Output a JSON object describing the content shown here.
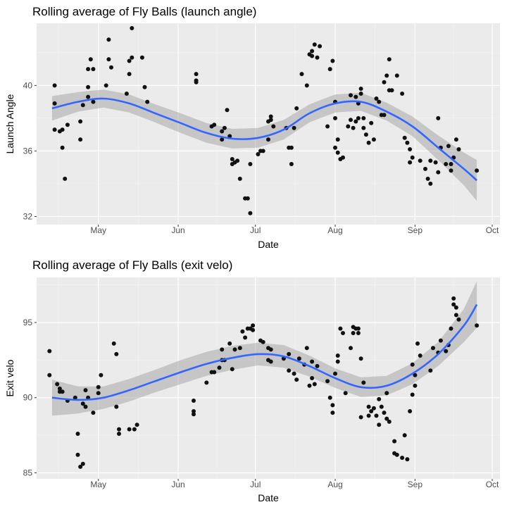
{
  "colors": {
    "panel": "#ebebeb",
    "grid_major": "#ffffff",
    "grid_minor": "#f5f5f5",
    "point": "#111111",
    "smooth": "#3366ff",
    "ribbon": "#999999"
  },
  "chart_data": [
    {
      "type": "scatter",
      "title": "Rolling average of Fly Balls (launch angle)",
      "xlabel": "Date",
      "ylabel": "Launch Angle",
      "x_axis": "date",
      "xlim": [
        "2023-04-07",
        "2023-10-04"
      ],
      "ylim": [
        31.5,
        43.8
      ],
      "x_ticks": [
        {
          "date": "2023-05-01",
          "label": "May"
        },
        {
          "date": "2023-06-01",
          "label": "Jun"
        },
        {
          "date": "2023-07-01",
          "label": "Jul"
        },
        {
          "date": "2023-08-01",
          "label": "Aug"
        },
        {
          "date": "2023-09-01",
          "label": "Sep"
        },
        {
          "date": "2023-10-01",
          "label": "Oct"
        }
      ],
      "y_ticks": [
        32,
        36,
        40
      ],
      "grid": true,
      "points": [
        [
          "2023-04-14",
          40.0
        ],
        [
          "2023-04-14",
          38.9
        ],
        [
          "2023-04-14",
          37.3
        ],
        [
          "2023-04-16",
          37.2
        ],
        [
          "2023-04-17",
          37.3
        ],
        [
          "2023-04-17",
          36.2
        ],
        [
          "2023-04-18",
          34.3
        ],
        [
          "2023-04-19",
          37.6
        ],
        [
          "2023-04-24",
          37.8
        ],
        [
          "2023-04-24",
          36.7
        ],
        [
          "2023-04-25",
          38.8
        ],
        [
          "2023-04-27",
          39.3
        ],
        [
          "2023-04-27",
          39.9
        ],
        [
          "2023-04-27",
          41.0
        ],
        [
          "2023-04-28",
          41.6
        ],
        [
          "2023-04-29",
          41.0
        ],
        [
          "2023-04-29",
          39.0
        ],
        [
          "2023-05-04",
          40.0
        ],
        [
          "2023-05-05",
          42.8
        ],
        [
          "2023-05-05",
          41.6
        ],
        [
          "2023-05-06",
          41.1
        ],
        [
          "2023-05-12",
          39.5
        ],
        [
          "2023-05-13",
          40.7
        ],
        [
          "2023-05-13",
          41.5
        ],
        [
          "2023-05-14",
          43.5
        ],
        [
          "2023-05-14",
          41.7
        ],
        [
          "2023-05-18",
          41.7
        ],
        [
          "2023-05-19",
          39.9
        ],
        [
          "2023-05-20",
          39.0
        ],
        [
          "2023-06-08",
          40.7
        ],
        [
          "2023-06-08",
          40.3
        ],
        [
          "2023-06-08",
          40.2
        ],
        [
          "2023-06-14",
          37.5
        ],
        [
          "2023-06-15",
          37.6
        ],
        [
          "2023-06-18",
          37.2
        ],
        [
          "2023-06-18",
          36.7
        ],
        [
          "2023-06-19",
          37.4
        ],
        [
          "2023-06-20",
          38.5
        ],
        [
          "2023-06-21",
          36.9
        ],
        [
          "2023-06-22",
          35.5
        ],
        [
          "2023-06-22",
          35.2
        ],
        [
          "2023-06-23",
          35.3
        ],
        [
          "2023-06-24",
          35.4
        ],
        [
          "2023-06-25",
          34.3
        ],
        [
          "2023-06-27",
          33.1
        ],
        [
          "2023-06-28",
          33.1
        ],
        [
          "2023-06-29",
          32.2
        ],
        [
          "2023-06-29",
          35.2
        ],
        [
          "2023-07-02",
          35.8
        ],
        [
          "2023-07-03",
          36.0
        ],
        [
          "2023-07-04",
          36.0
        ],
        [
          "2023-07-06",
          37.8
        ],
        [
          "2023-07-06",
          36.7
        ],
        [
          "2023-07-07",
          37.9
        ],
        [
          "2023-07-07",
          38.1
        ],
        [
          "2023-07-08",
          37.5
        ],
        [
          "2023-07-13",
          37.4
        ],
        [
          "2023-07-14",
          36.2
        ],
        [
          "2023-07-15",
          36.2
        ],
        [
          "2023-07-15",
          35.2
        ],
        [
          "2023-07-16",
          37.4
        ],
        [
          "2023-07-17",
          38.6
        ],
        [
          "2023-07-19",
          40.7
        ],
        [
          "2023-07-21",
          40.0
        ],
        [
          "2023-07-22",
          41.9
        ],
        [
          "2023-07-23",
          42.1
        ],
        [
          "2023-07-23",
          41.8
        ],
        [
          "2023-07-24",
          42.5
        ],
        [
          "2023-07-25",
          41.7
        ],
        [
          "2023-07-26",
          42.4
        ],
        [
          "2023-07-29",
          37.5
        ],
        [
          "2023-07-30",
          41.0
        ],
        [
          "2023-07-31",
          41.5
        ],
        [
          "2023-08-01",
          39.0
        ],
        [
          "2023-08-01",
          38.0
        ],
        [
          "2023-08-01",
          36.2
        ],
        [
          "2023-08-02",
          36.7
        ],
        [
          "2023-08-02",
          35.9
        ],
        [
          "2023-08-03",
          35.5
        ],
        [
          "2023-08-04",
          35.6
        ],
        [
          "2023-08-06",
          37.5
        ],
        [
          "2023-08-07",
          39.4
        ],
        [
          "2023-08-07",
          37.9
        ],
        [
          "2023-08-08",
          37.4
        ],
        [
          "2023-08-09",
          39.3
        ],
        [
          "2023-08-09",
          37.8
        ],
        [
          "2023-08-10",
          38.9
        ],
        [
          "2023-08-10",
          38.0
        ],
        [
          "2023-08-11",
          39.5
        ],
        [
          "2023-08-11",
          39.8
        ],
        [
          "2023-08-12",
          38.0
        ],
        [
          "2023-08-12",
          37.4
        ],
        [
          "2023-08-13",
          37.0
        ],
        [
          "2023-08-14",
          36.5
        ],
        [
          "2023-08-15",
          37.7
        ],
        [
          "2023-08-16",
          36.7
        ],
        [
          "2023-08-17",
          39.2
        ],
        [
          "2023-08-18",
          39.0
        ],
        [
          "2023-08-19",
          38.2
        ],
        [
          "2023-08-20",
          40.2
        ],
        [
          "2023-08-20",
          38.2
        ],
        [
          "2023-08-21",
          40.6
        ],
        [
          "2023-08-22",
          41.6
        ],
        [
          "2023-08-22",
          39.7
        ],
        [
          "2023-08-23",
          39.7
        ],
        [
          "2023-08-25",
          40.6
        ],
        [
          "2023-08-27",
          39.5
        ],
        [
          "2023-08-28",
          36.8
        ],
        [
          "2023-08-29",
          36.5
        ],
        [
          "2023-08-30",
          35.3
        ],
        [
          "2023-08-30",
          36.1
        ],
        [
          "2023-08-31",
          35.6
        ],
        [
          "2023-09-03",
          35.4
        ],
        [
          "2023-09-05",
          34.9
        ],
        [
          "2023-09-06",
          34.3
        ],
        [
          "2023-09-07",
          35.4
        ],
        [
          "2023-09-07",
          34.0
        ],
        [
          "2023-09-09",
          35.3
        ],
        [
          "2023-09-10",
          34.7
        ],
        [
          "2023-09-10",
          38.0
        ],
        [
          "2023-09-11",
          36.2
        ],
        [
          "2023-09-13",
          35.2
        ],
        [
          "2023-09-14",
          36.3
        ],
        [
          "2023-09-15",
          35.2
        ],
        [
          "2023-09-15",
          34.8
        ],
        [
          "2023-09-16",
          35.6
        ],
        [
          "2023-09-17",
          36.7
        ],
        [
          "2023-09-18",
          36.1
        ],
        [
          "2023-09-25",
          34.8
        ]
      ],
      "smooth": [
        [
          "2023-04-13",
          38.6
        ],
        [
          "2023-04-23",
          39.0
        ],
        [
          "2023-05-03",
          39.2
        ],
        [
          "2023-05-13",
          38.9
        ],
        [
          "2023-05-23",
          38.3
        ],
        [
          "2023-06-02",
          37.7
        ],
        [
          "2023-06-12",
          37.1
        ],
        [
          "2023-06-22",
          36.75
        ],
        [
          "2023-07-02",
          36.8
        ],
        [
          "2023-07-12",
          37.3
        ],
        [
          "2023-07-22",
          38.3
        ],
        [
          "2023-08-01",
          38.9
        ],
        [
          "2023-08-11",
          39.0
        ],
        [
          "2023-08-21",
          38.4
        ],
        [
          "2023-08-31",
          37.5
        ],
        [
          "2023-09-10",
          36.2
        ],
        [
          "2023-09-20",
          34.9
        ],
        [
          "2023-09-25",
          34.2
        ]
      ],
      "ribbon_halfwidth": [
        0.75,
        0.6,
        0.55,
        0.55,
        0.55,
        0.6,
        0.6,
        0.6,
        0.6,
        0.6,
        0.55,
        0.55,
        0.55,
        0.55,
        0.6,
        0.75,
        1.0,
        1.25
      ]
    },
    {
      "type": "scatter",
      "title": "Rolling average of Fly Balls (exit velo)",
      "xlabel": "Date",
      "ylabel": "Exit velo",
      "x_axis": "date",
      "xlim": [
        "2023-04-07",
        "2023-10-04"
      ],
      "ylim": [
        84.6,
        98.0
      ],
      "x_ticks": [
        {
          "date": "2023-05-01",
          "label": "May"
        },
        {
          "date": "2023-06-01",
          "label": "Jun"
        },
        {
          "date": "2023-07-01",
          "label": "Jul"
        },
        {
          "date": "2023-08-01",
          "label": "Aug"
        },
        {
          "date": "2023-09-01",
          "label": "Sep"
        },
        {
          "date": "2023-10-01",
          "label": "Oct"
        }
      ],
      "y_ticks": [
        85,
        90,
        95
      ],
      "grid": true,
      "points": [
        [
          "2023-04-12",
          93.1
        ],
        [
          "2023-04-12",
          91.5
        ],
        [
          "2023-04-15",
          90.9
        ],
        [
          "2023-04-16",
          90.6
        ],
        [
          "2023-04-16",
          90.4
        ],
        [
          "2023-04-17",
          90.4
        ],
        [
          "2023-04-19",
          89.8
        ],
        [
          "2023-04-22",
          90.0
        ],
        [
          "2023-04-23",
          87.6
        ],
        [
          "2023-04-23",
          86.2
        ],
        [
          "2023-04-24",
          85.4
        ],
        [
          "2023-04-25",
          85.6
        ],
        [
          "2023-04-25",
          89.6
        ],
        [
          "2023-04-26",
          90.5
        ],
        [
          "2023-04-26",
          89.4
        ],
        [
          "2023-04-27",
          90.0
        ],
        [
          "2023-04-29",
          89.0
        ],
        [
          "2023-05-01",
          90.7
        ],
        [
          "2023-05-01",
          90.3
        ],
        [
          "2023-05-02",
          91.5
        ],
        [
          "2023-05-07",
          93.6
        ],
        [
          "2023-05-08",
          92.9
        ],
        [
          "2023-05-08",
          89.4
        ],
        [
          "2023-05-09",
          87.9
        ],
        [
          "2023-05-09",
          87.6
        ],
        [
          "2023-05-13",
          87.9
        ],
        [
          "2023-05-15",
          87.9
        ],
        [
          "2023-05-16",
          88.2
        ],
        [
          "2023-06-07",
          89.8
        ],
        [
          "2023-06-07",
          89.1
        ],
        [
          "2023-06-07",
          88.9
        ],
        [
          "2023-06-12",
          91.0
        ],
        [
          "2023-06-14",
          91.7
        ],
        [
          "2023-06-15",
          91.7
        ],
        [
          "2023-06-17",
          92.0
        ],
        [
          "2023-06-18",
          92.5
        ],
        [
          "2023-06-18",
          93.2
        ],
        [
          "2023-06-19",
          92.5
        ],
        [
          "2023-06-21",
          93.6
        ],
        [
          "2023-06-22",
          91.9
        ],
        [
          "2023-06-23",
          93.2
        ],
        [
          "2023-06-25",
          93.3
        ],
        [
          "2023-06-26",
          94.4
        ],
        [
          "2023-06-27",
          94.0
        ],
        [
          "2023-06-28",
          94.6
        ],
        [
          "2023-06-29",
          94.6
        ],
        [
          "2023-06-30",
          94.8
        ],
        [
          "2023-06-30",
          94.5
        ],
        [
          "2023-07-03",
          93.8
        ],
        [
          "2023-07-04",
          93.7
        ],
        [
          "2023-07-06",
          93.3
        ],
        [
          "2023-07-06",
          92.5
        ],
        [
          "2023-07-07",
          93.2
        ],
        [
          "2023-07-07",
          92.4
        ],
        [
          "2023-07-12",
          92.6
        ],
        [
          "2023-07-14",
          92.9
        ],
        [
          "2023-07-14",
          91.8
        ],
        [
          "2023-07-16",
          91.6
        ],
        [
          "2023-07-17",
          91.2
        ],
        [
          "2023-07-18",
          92.6
        ],
        [
          "2023-07-20",
          92.2
        ],
        [
          "2023-07-21",
          93.3
        ],
        [
          "2023-07-22",
          90.8
        ],
        [
          "2023-07-23",
          91.3
        ],
        [
          "2023-07-23",
          92.4
        ],
        [
          "2023-07-24",
          90.9
        ],
        [
          "2023-07-25",
          92.1
        ],
        [
          "2023-07-29",
          91.1
        ],
        [
          "2023-07-30",
          90.0
        ],
        [
          "2023-07-31",
          89.5
        ],
        [
          "2023-07-31",
          89.0
        ],
        [
          "2023-08-01",
          91.6
        ],
        [
          "2023-08-02",
          92.4
        ],
        [
          "2023-08-02",
          92.8
        ],
        [
          "2023-08-03",
          94.6
        ],
        [
          "2023-08-04",
          94.3
        ],
        [
          "2023-08-05",
          90.3
        ],
        [
          "2023-08-07",
          93.3
        ],
        [
          "2023-08-08",
          94.3
        ],
        [
          "2023-08-08",
          94.7
        ],
        [
          "2023-08-09",
          94.6
        ],
        [
          "2023-08-10",
          94.6
        ],
        [
          "2023-08-10",
          94.3
        ],
        [
          "2023-08-11",
          92.6
        ],
        [
          "2023-08-11",
          88.7
        ],
        [
          "2023-08-12",
          91.0
        ],
        [
          "2023-08-14",
          89.4
        ],
        [
          "2023-08-14",
          88.8
        ],
        [
          "2023-08-15",
          89.1
        ],
        [
          "2023-08-16",
          89.3
        ],
        [
          "2023-08-17",
          88.8
        ],
        [
          "2023-08-18",
          88.2
        ],
        [
          "2023-08-18",
          89.9
        ],
        [
          "2023-08-19",
          89.4
        ],
        [
          "2023-08-20",
          89.0
        ],
        [
          "2023-08-21",
          90.3
        ],
        [
          "2023-08-21",
          88.6
        ],
        [
          "2023-08-22",
          88.4
        ],
        [
          "2023-08-24",
          87.1
        ],
        [
          "2023-08-24",
          86.3
        ],
        [
          "2023-08-25",
          86.2
        ],
        [
          "2023-08-27",
          86.0
        ],
        [
          "2023-08-28",
          87.5
        ],
        [
          "2023-08-29",
          85.9
        ],
        [
          "2023-08-30",
          89.1
        ],
        [
          "2023-08-31",
          90.2
        ],
        [
          "2023-08-31",
          92.2
        ],
        [
          "2023-09-01",
          91.5
        ],
        [
          "2023-09-01",
          90.8
        ],
        [
          "2023-09-02",
          93.6
        ],
        [
          "2023-09-03",
          92.8
        ],
        [
          "2023-09-07",
          91.8
        ],
        [
          "2023-09-08",
          93.3
        ],
        [
          "2023-09-10",
          93.0
        ],
        [
          "2023-09-11",
          93.8
        ],
        [
          "2023-09-13",
          93.1
        ],
        [
          "2023-09-14",
          93.5
        ],
        [
          "2023-09-15",
          94.6
        ],
        [
          "2023-09-16",
          96.6
        ],
        [
          "2023-09-16",
          96.2
        ],
        [
          "2023-09-17",
          95.5
        ],
        [
          "2023-09-17",
          96.0
        ],
        [
          "2023-09-18",
          95.2
        ],
        [
          "2023-09-25",
          94.8
        ]
      ],
      "smooth": [
        [
          "2023-04-13",
          90.0
        ],
        [
          "2023-04-23",
          89.85
        ],
        [
          "2023-05-03",
          90.0
        ],
        [
          "2023-05-13",
          90.5
        ],
        [
          "2023-05-23",
          91.1
        ],
        [
          "2023-06-02",
          91.7
        ],
        [
          "2023-06-12",
          92.25
        ],
        [
          "2023-06-22",
          92.65
        ],
        [
          "2023-07-02",
          92.9
        ],
        [
          "2023-07-12",
          92.75
        ],
        [
          "2023-07-22",
          92.1
        ],
        [
          "2023-08-01",
          91.3
        ],
        [
          "2023-08-11",
          90.7
        ],
        [
          "2023-08-21",
          90.8
        ],
        [
          "2023-08-31",
          91.6
        ],
        [
          "2023-09-10",
          92.9
        ],
        [
          "2023-09-20",
          94.8
        ],
        [
          "2023-09-25",
          96.2
        ]
      ],
      "ribbon_halfwidth": [
        1.2,
        0.9,
        0.75,
        0.75,
        0.75,
        0.8,
        0.8,
        0.8,
        0.75,
        0.75,
        0.7,
        0.65,
        0.65,
        0.65,
        0.7,
        0.8,
        1.1,
        1.55
      ]
    }
  ]
}
